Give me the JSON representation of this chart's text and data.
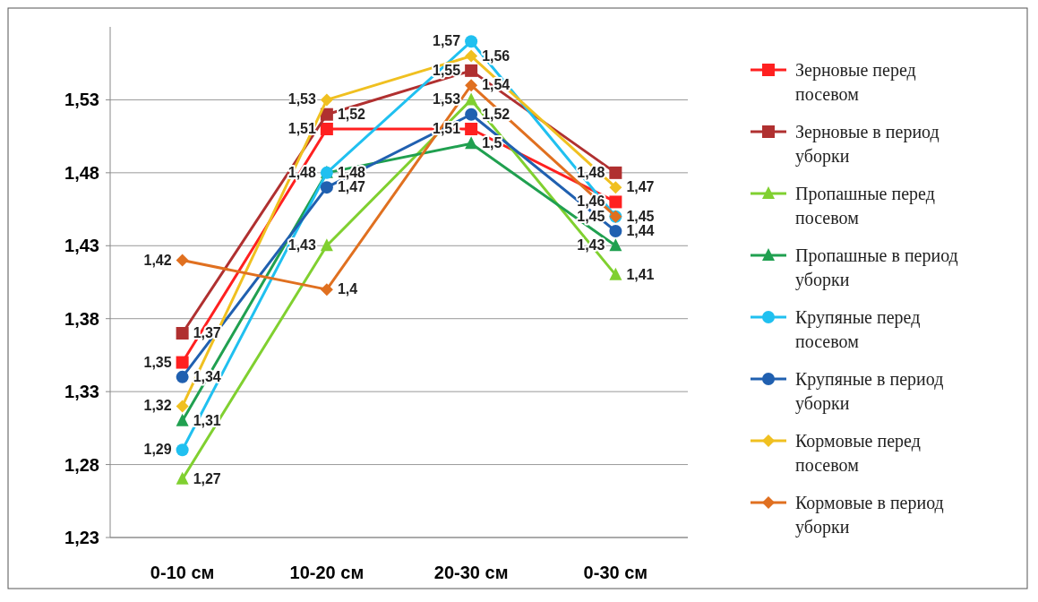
{
  "chart_data": {
    "type": "line",
    "categories": [
      "0-10 см",
      "10-20 см",
      "20-30 см",
      "0-30 см"
    ],
    "ylim": [
      1.23,
      1.58
    ],
    "yticks": [
      {
        "value": 1.23,
        "label": "1,23"
      },
      {
        "value": 1.28,
        "label": "1,28"
      },
      {
        "value": 1.33,
        "label": "1,33"
      },
      {
        "value": 1.38,
        "label": "1,38"
      },
      {
        "value": 1.43,
        "label": "1,43"
      },
      {
        "value": 1.48,
        "label": "1,48"
      },
      {
        "value": 1.53,
        "label": "1,53"
      }
    ],
    "grid": "y",
    "legend": "right",
    "series": [
      {
        "name": "Зерновые перед посевом",
        "color": "#ff2020",
        "marker": "square",
        "values": [
          1.35,
          1.51,
          1.51,
          1.46
        ],
        "value_labels": [
          "1,35",
          "1,51",
          "1,51",
          "1,46"
        ]
      },
      {
        "name": "Зерновые в период уборки",
        "color": "#b03030",
        "marker": "square",
        "values": [
          1.37,
          1.52,
          1.55,
          1.48
        ],
        "value_labels": [
          "1,37",
          "1,52",
          "1,55",
          "1,48"
        ]
      },
      {
        "name": "Пропашные перед посевом",
        "color": "#80d030",
        "marker": "triangle",
        "values": [
          1.27,
          1.43,
          1.53,
          1.41
        ],
        "value_labels": [
          "1,27",
          "1,43",
          "1,53",
          "1,41"
        ]
      },
      {
        "name": "Пропашные в период уборки",
        "color": "#20a050",
        "marker": "triangle",
        "values": [
          1.31,
          1.48,
          1.5,
          1.43
        ],
        "value_labels": [
          "1,31",
          "1,48",
          "1,5",
          "1,43"
        ]
      },
      {
        "name": "Крупяные перед посевом",
        "color": "#20c0f0",
        "marker": "circle",
        "values": [
          1.29,
          1.48,
          1.57,
          1.45
        ],
        "value_labels": [
          "1,29",
          "1,48",
          "1,57",
          "1,45"
        ]
      },
      {
        "name": "Крупяные в период уборки",
        "color": "#2060b0",
        "marker": "circle",
        "values": [
          1.34,
          1.47,
          1.52,
          1.44
        ],
        "value_labels": [
          "1,34",
          "1,47",
          "1,52",
          "1,44"
        ]
      },
      {
        "name": "Кормовые перед посевом",
        "color": "#f0c020",
        "marker": "diamond",
        "values": [
          1.32,
          1.53,
          1.56,
          1.47
        ],
        "value_labels": [
          "1,32",
          "1,53",
          "1,56",
          "1,47"
        ]
      },
      {
        "name": "Кормовые в период уборки",
        "color": "#e07020",
        "marker": "diamond",
        "values": [
          1.42,
          1.4,
          1.54,
          1.45
        ],
        "value_labels": [
          "1,42",
          "1,4",
          "1,54",
          "1,45"
        ]
      }
    ]
  }
}
